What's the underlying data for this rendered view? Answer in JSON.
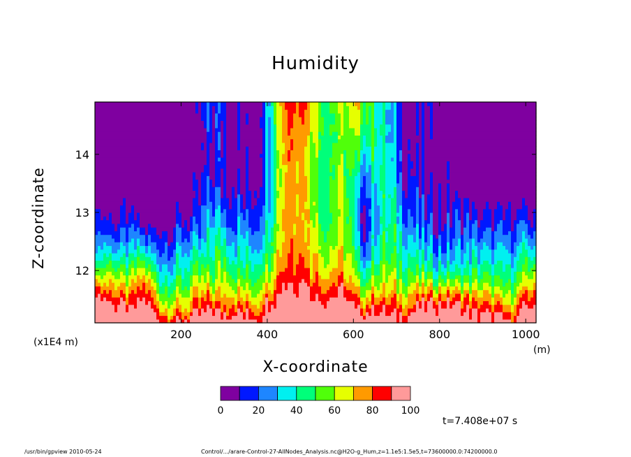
{
  "title": "Humidity",
  "xlabel": "X-coordinate",
  "ylabel": "Z-coordinate",
  "x_scale_note": "(x1E4 m)",
  "x_unit": "(m)",
  "time_label": "t=7.408e+07 s",
  "footer_left": "/usr/bin/gpview   2010-05-24",
  "footer_right": "Control/.../arare-Control-27-AllNodes_Analysis.nc@H2O-g_Hum,z=1.1e5:1.5e5,t=73600000.0:74200000.0",
  "chart_data": {
    "type": "heatmap",
    "variable": "Humidity",
    "x_ticks": [
      200,
      400,
      600,
      800,
      1000
    ],
    "y_ticks": [
      12,
      13,
      14
    ],
    "xlim": [
      0,
      1024
    ],
    "ylim": [
      11.1,
      14.9
    ],
    "colorbar": {
      "levels": [
        0,
        10,
        20,
        30,
        40,
        50,
        60,
        70,
        80,
        90,
        100
      ],
      "tick_labels": [
        "0",
        "20",
        "40",
        "60",
        "80",
        "100"
      ],
      "colors": [
        "#7f00a0",
        "#0018ff",
        "#1e86ff",
        "#00f0f0",
        "#00ff7a",
        "#50ff0a",
        "#e6ff00",
        "#ff9a00",
        "#ff0000",
        "#ff9a9a"
      ]
    }
  }
}
